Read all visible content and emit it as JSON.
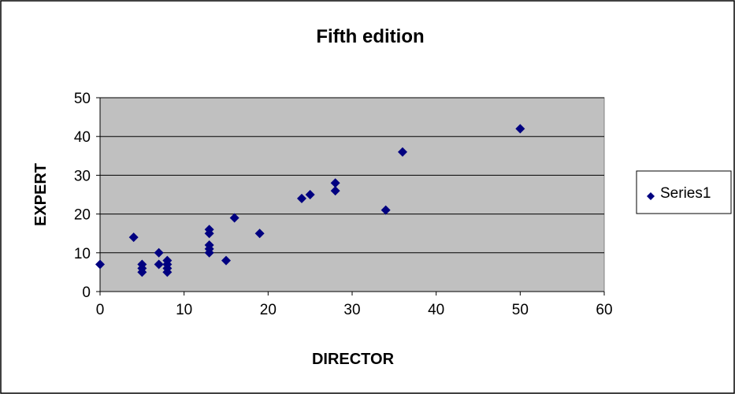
{
  "chart_data": {
    "type": "scatter",
    "title": "Fifth edition",
    "xlabel": "DIRECTOR",
    "ylabel": "EXPERT",
    "xlim": [
      0,
      60
    ],
    "ylim": [
      0,
      50
    ],
    "xticks": [
      0,
      10,
      20,
      30,
      40,
      50,
      60
    ],
    "yticks": [
      0,
      10,
      20,
      30,
      40,
      50
    ],
    "grid": "horizontal",
    "plot_background": "#c0c0c0",
    "legend_position": "right",
    "series": [
      {
        "name": "Series1",
        "color": "#000080",
        "marker": "diamond",
        "points": [
          [
            0,
            7
          ],
          [
            4,
            14
          ],
          [
            5,
            7
          ],
          [
            5,
            6
          ],
          [
            5,
            5
          ],
          [
            7,
            10
          ],
          [
            7,
            7
          ],
          [
            8,
            8
          ],
          [
            8,
            7
          ],
          [
            8,
            6
          ],
          [
            8,
            5
          ],
          [
            13,
            16
          ],
          [
            13,
            15
          ],
          [
            13,
            12
          ],
          [
            13,
            11
          ],
          [
            13,
            10
          ],
          [
            15,
            8
          ],
          [
            16,
            19
          ],
          [
            19,
            15
          ],
          [
            24,
            24
          ],
          [
            25,
            25
          ],
          [
            28,
            28
          ],
          [
            28,
            26
          ],
          [
            34,
            21
          ],
          [
            36,
            36
          ],
          [
            50,
            42
          ]
        ]
      }
    ]
  }
}
